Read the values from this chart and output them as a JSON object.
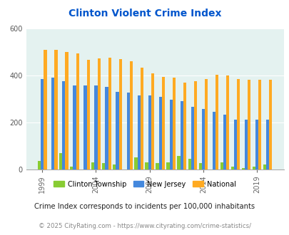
{
  "title": "Clinton Violent Crime Index",
  "title_color": "#0055cc",
  "years_data": [
    1999,
    2000,
    2001,
    2002,
    2003,
    2004,
    2005,
    2006,
    2007,
    2008,
    2009,
    2010,
    2011,
    2012,
    2013,
    2014,
    2015,
    2016,
    2017,
    2018,
    2019,
    2020
  ],
  "clinton_vals": [
    35,
    0,
    70,
    10,
    0,
    30,
    25,
    20,
    0,
    50,
    30,
    25,
    30,
    55,
    45,
    25,
    0,
    30,
    10,
    5,
    10,
    20
  ],
  "nj_vals": [
    383,
    390,
    376,
    355,
    356,
    356,
    350,
    330,
    325,
    315,
    313,
    308,
    295,
    290,
    265,
    257,
    245,
    232,
    210,
    210,
    210,
    210
  ],
  "nat_vals": [
    508,
    508,
    500,
    494,
    465,
    473,
    475,
    468,
    458,
    432,
    407,
    393,
    390,
    368,
    375,
    383,
    401,
    399,
    385,
    380,
    380,
    380
  ],
  "clinton_color": "#88cc33",
  "nj_color": "#4488dd",
  "national_color": "#ffaa22",
  "bg_color": "#e4f2f0",
  "ylim": [
    0,
    600
  ],
  "yticks": [
    0,
    200,
    400,
    600
  ],
  "subtitle": "Crime Index corresponds to incidents per 100,000 inhabitants",
  "footer": "© 2025 CityRating.com - https://www.cityrating.com/crime-statistics/",
  "legend_labels": [
    "Clinton Township",
    "New Jersey",
    "National"
  ],
  "bar_width": 0.28,
  "grid_color": "#ffffff",
  "tick_years": [
    1999,
    2004,
    2009,
    2014,
    2019
  ]
}
